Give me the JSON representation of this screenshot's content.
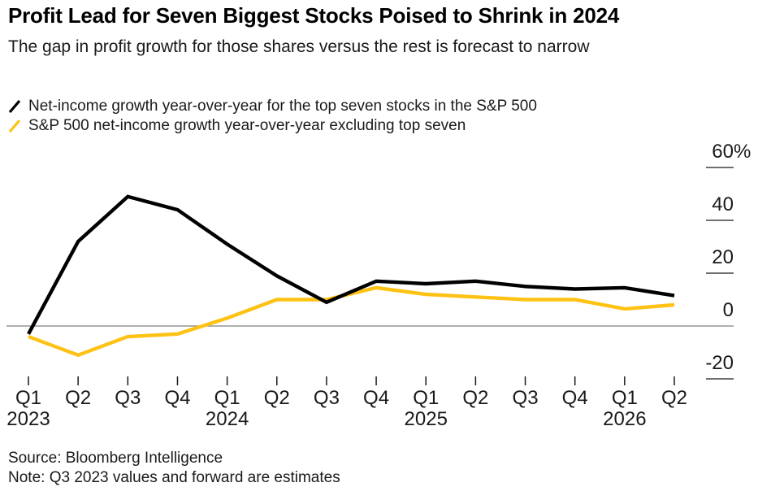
{
  "header": {
    "title": "Profit Lead for Seven Biggest Stocks Poised to Shrink in 2024",
    "subtitle": "The gap in profit growth for those shares versus the rest is forecast to narrow"
  },
  "legend": [
    {
      "id": "top-seven",
      "label": "Net-income growth year-over-year for the top seven stocks in the S&P 500",
      "color": "#000000"
    },
    {
      "id": "ex-top-seven",
      "label": "S&P 500 net-income growth year-over-year excluding top seven",
      "color": "#FDC213"
    }
  ],
  "chart_data": {
    "type": "line",
    "x": [
      "Q1 2023",
      "Q2 2023",
      "Q3 2023",
      "Q4 2023",
      "Q1 2024",
      "Q2 2024",
      "Q3 2024",
      "Q4 2024",
      "Q1 2025",
      "Q2 2025",
      "Q3 2025",
      "Q4 2025",
      "Q1 2026",
      "Q2 2026"
    ],
    "x_tick_labels": [
      "Q1",
      "Q2",
      "Q3",
      "Q4",
      "Q1",
      "Q2",
      "Q3",
      "Q4",
      "Q1",
      "Q2",
      "Q3",
      "Q4",
      "Q1",
      "Q2"
    ],
    "year_labels": [
      {
        "text": "2023",
        "index": 0
      },
      {
        "text": "2024",
        "index": 4
      },
      {
        "text": "2025",
        "index": 8
      },
      {
        "text": "2026",
        "index": 12
      }
    ],
    "series": [
      {
        "id": "top-seven",
        "name": "Net-income growth year-over-year for the top seven stocks in the S&P 500",
        "color": "#000000",
        "values": [
          -3,
          32,
          49,
          44,
          31,
          19,
          9,
          17,
          16,
          17,
          15,
          14,
          14.5,
          11.5
        ]
      },
      {
        "id": "ex-top-seven",
        "name": "S&P 500 net-income growth year-over-year excluding top seven",
        "color": "#FDC213",
        "values": [
          -4,
          -11,
          -4,
          -3,
          3,
          10,
          10,
          14.5,
          12,
          11,
          10,
          10,
          6.5,
          8
        ]
      }
    ],
    "y_ticks": [
      60,
      40,
      20,
      0,
      -20
    ],
    "y_tick_labels": [
      "60%",
      "40",
      "20",
      "0",
      "-20"
    ],
    "ylim": [
      -25,
      62
    ],
    "unit": "%",
    "grid": "right-ticks-only",
    "legend_position": "top-left",
    "baseline_value": 0
  },
  "footer": {
    "source": "Source: Bloomberg Intelligence",
    "note": "Note: Q3 2023 values and forward are estimates"
  }
}
